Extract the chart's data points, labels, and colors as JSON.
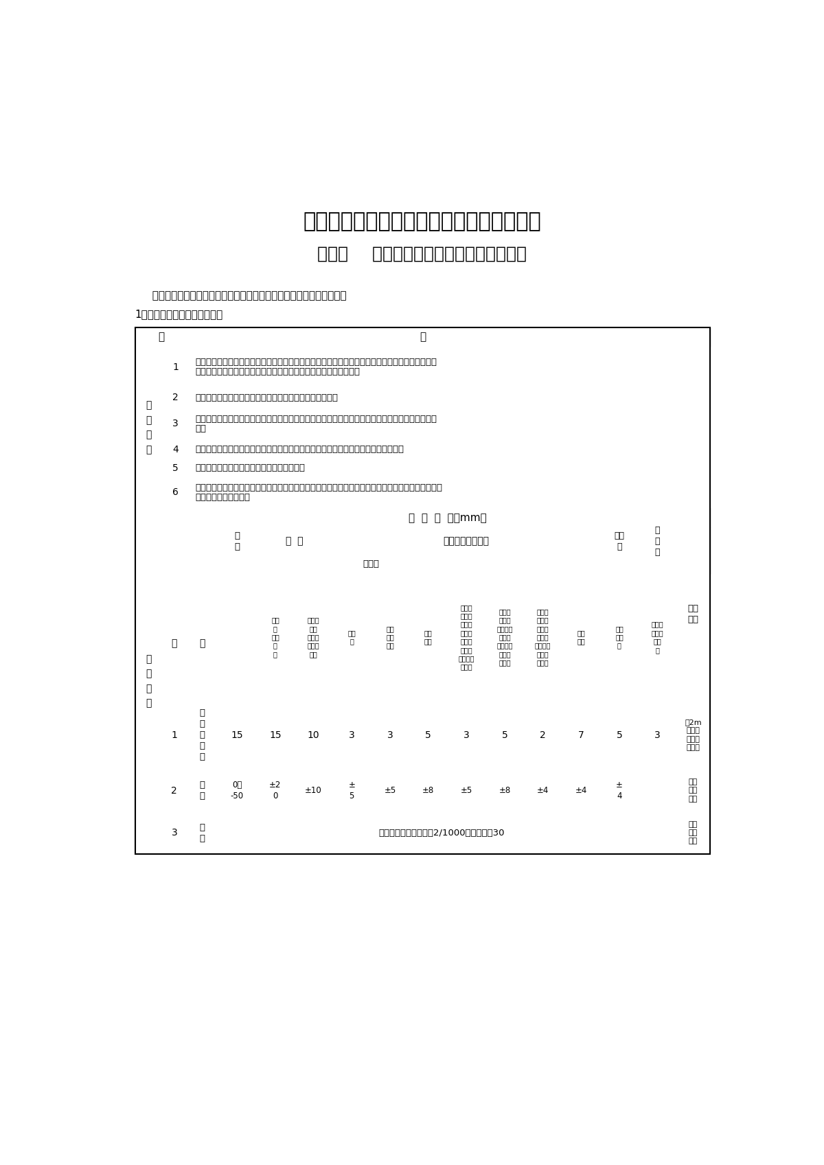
{
  "title1": "八、地面与楼面工程施工质量监理实施细则",
  "title2": "（壹）    地面与楼面工程施工质量验评标准",
  "intro": "  建筑地面工程分为整体面层、板块面层和木、竹面层三个子分部工程。",
  "section_title": "1、建筑地面基层工程质量标准",
  "main_items": [
    {
      "num": "1",
      "lines": [
        "所采用的材料应按设计要求和规范规定选用，并应符合国家标准的规定；进场材料应有中文质量合格",
        "证明文件、规格、型号及性能检测报告，对重要材料应有复验报告。"
      ]
    },
    {
      "num": "2",
      "lines": [
        "厕浴间和有防滑要求的建筑地面的板块材料应符合设计要求"
      ]
    },
    {
      "num": "3",
      "lines": [
        "厕浴间、厨房和有排水（或其他液体）要求的建筑地面面层与相连接各类面层的标高差应符合设计要",
        "求。"
      ]
    },
    {
      "num": "4",
      "lines": [
        "基土铺设的材料质量、密实度和强度等级（或配合比）等应符合设计要求和规范规定。"
      ]
    },
    {
      "num": "5",
      "lines": [
        "基层铺设前，其下一层表面应干净、无积水。"
      ]
    },
    {
      "num": "6",
      "lines": [
        "当垫层、找平层内埋设暗管时，管道应按设计要求予以稳固。基层的标高、坡度、厚度等应符合设计要",
        "求。基层表面应平整。"
      ]
    }
  ],
  "col_headers_data": [
    "砂、\n砂\n石、\n碎\n砖",
    "灰土、\n三合\n土、炉\n渣、混\n凝土",
    "木搁\n栅",
    "拼花\n实木\n板等",
    "其他\n种类",
    "用沥青\n玛蹄脂\n做结合\n层，铺\n设拼花\n木板，\n板块、板\n块面层",
    "用水泥\n砂浆做\n结合层，\n铺设拼\n花木板，\n铺设板\n块面层",
    "用胶粘\n剂做结\n合层，\n铺设拼\n花木板、\n塑料板\n等面层",
    "松散\n材料",
    "板、\n块材\n料",
    "防水、\n防潮、\n防油\n渗"
  ],
  "r1_vals": [
    "15",
    "15",
    "10",
    "3",
    "3",
    "5",
    "3",
    "5",
    "2",
    "7",
    "5",
    "3"
  ],
  "r2_jitu": "0，\n-50",
  "r2_vals": [
    "±2\n0",
    "±10",
    "±\n5",
    "±5",
    "±8",
    "±5",
    "±8",
    "±4",
    "±4",
    "±\n4"
  ],
  "r3_text": "不大于房间相应尺寸的2/1000，且不大于30"
}
